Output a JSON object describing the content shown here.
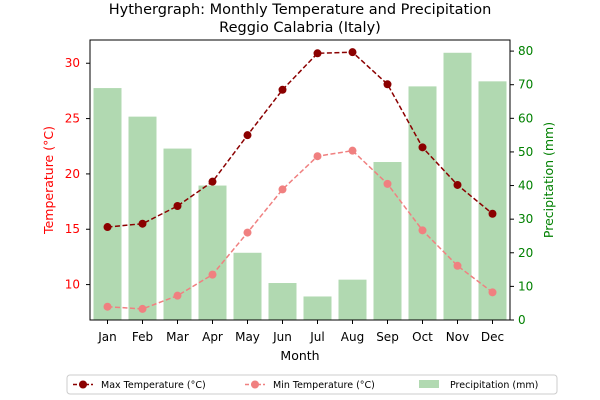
{
  "chart_data": {
    "type": "bar+line",
    "title": "Hythergraph: Monthly Temperature and Precipitation",
    "subtitle": "Reggio Calabria (Italy)",
    "xlabel": "Month",
    "ylabel_left": "Temperature (°C)",
    "ylabel_right": "Precipitation (mm)",
    "categories": [
      "Jan",
      "Feb",
      "Mar",
      "Apr",
      "May",
      "Jun",
      "Jul",
      "Aug",
      "Sep",
      "Oct",
      "Nov",
      "Dec"
    ],
    "ylim_left": [
      6.8,
      32.1
    ],
    "ylim_right": [
      0,
      83.3
    ],
    "yticks_left": [
      10,
      15,
      20,
      25,
      30
    ],
    "yticks_right": [
      0,
      10,
      20,
      30,
      40,
      50,
      60,
      70,
      80
    ],
    "series": [
      {
        "name": "Max Temperature (°C)",
        "kind": "line",
        "axis": "left",
        "color": "#8b0000",
        "dashed": true,
        "values": [
          15.2,
          15.5,
          17.1,
          19.3,
          23.5,
          27.6,
          30.9,
          31.0,
          28.1,
          22.4,
          19.0,
          16.4
        ]
      },
      {
        "name": "Min Temperature (°C)",
        "kind": "line",
        "axis": "left",
        "color": "#f08080",
        "dashed": true,
        "values": [
          8.0,
          7.8,
          9.0,
          10.9,
          14.7,
          18.6,
          21.6,
          22.1,
          19.1,
          14.9,
          11.7,
          9.3
        ]
      },
      {
        "name": "Precipitation (mm)",
        "kind": "bar",
        "axis": "right",
        "color": "#b1d9b1",
        "values": [
          69,
          60.5,
          51,
          40,
          20,
          11,
          7,
          12,
          47,
          69.5,
          79.5,
          71
        ]
      }
    ],
    "colors": {
      "left_axis": "#ff0000",
      "right_axis": "#008000"
    },
    "legend": "bottom-center",
    "grid": false
  }
}
